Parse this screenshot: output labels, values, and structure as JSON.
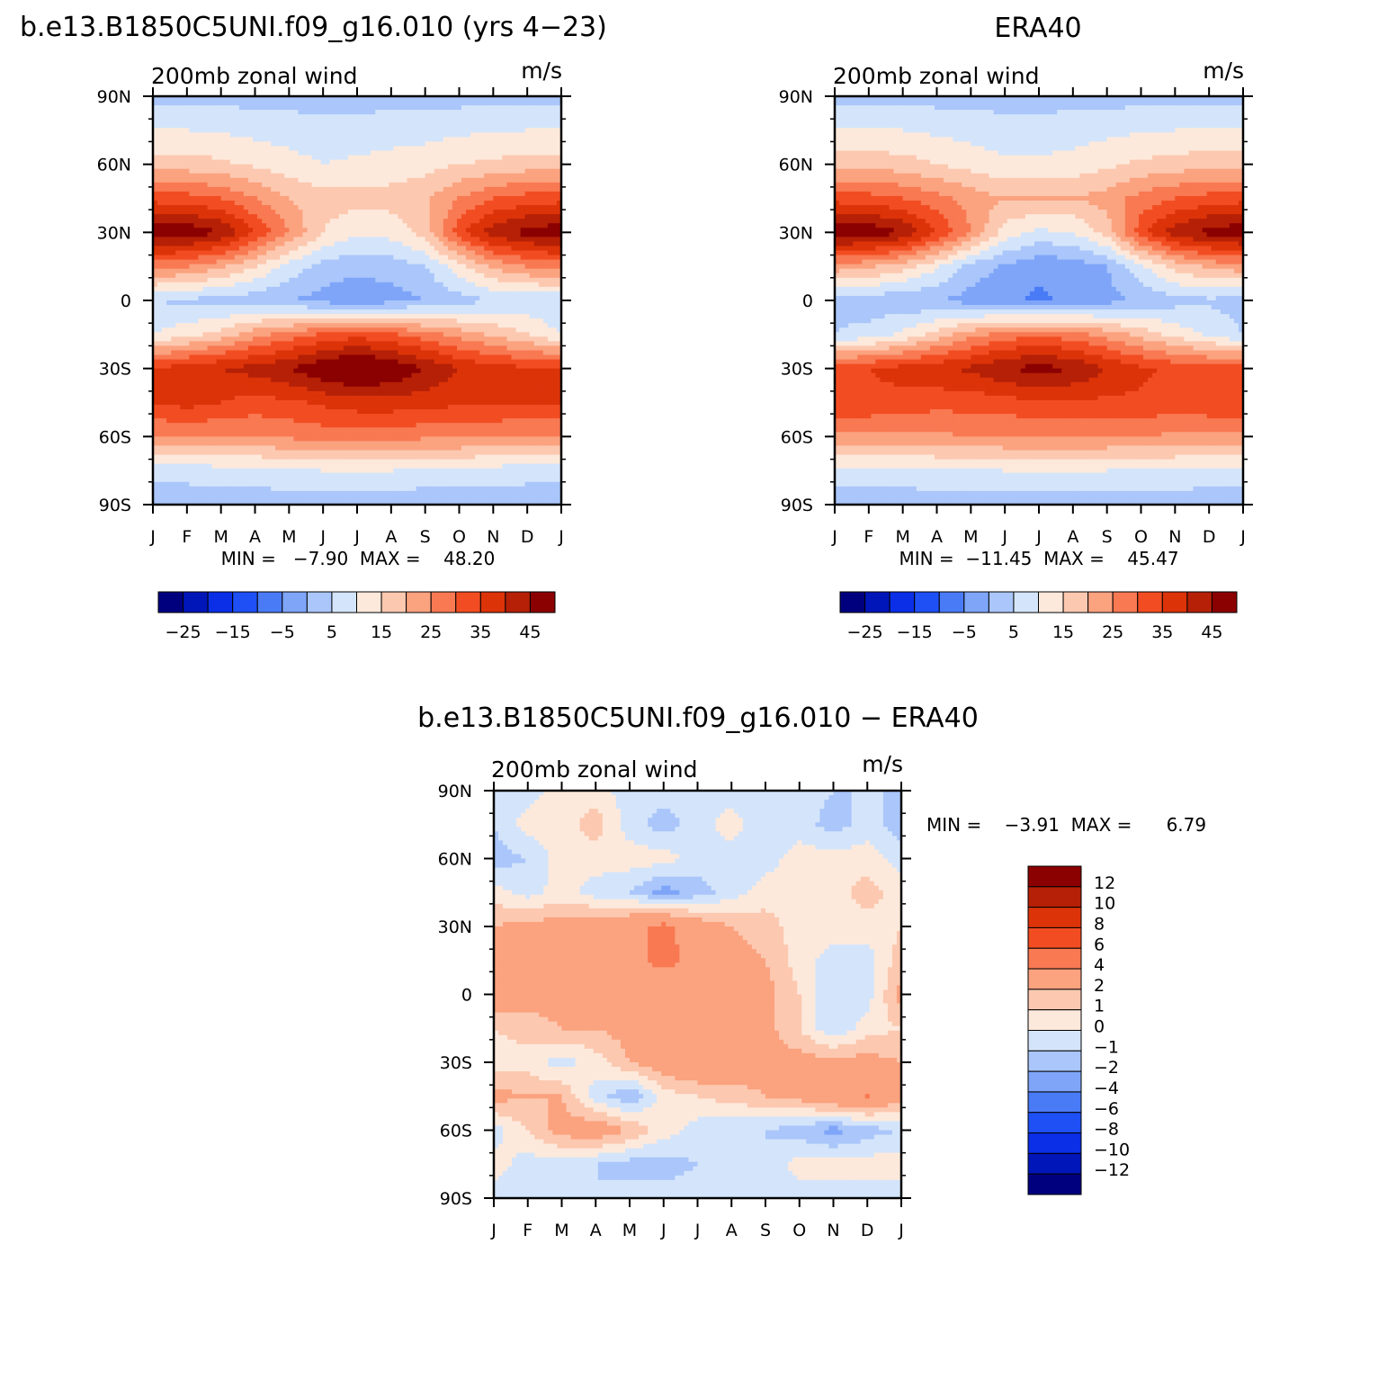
{
  "figure": {
    "panels": [
      {
        "id": "model",
        "title": "b.e13.B1850C5UNI.f09_g16.010 (yrs 4−23)",
        "subtitle_left": "200mb zonal wind",
        "subtitle_right": "m/s",
        "stats_text": "MIN =   −7.90  MAX =    48.20"
      },
      {
        "id": "obs",
        "title": "ERA40",
        "subtitle_left": "200mb zonal wind",
        "subtitle_right": "m/s",
        "stats_text": "MIN =  −11.45  MAX =    45.47"
      },
      {
        "id": "diff",
        "title": "b.e13.B1850C5UNI.f09_g16.010 − ERA40",
        "subtitle_left": "200mb zonal wind",
        "subtitle_right": "m/s",
        "stats_text": "MIN =    −3.91  MAX =      6.79"
      }
    ],
    "colorbar_main": {
      "labels": [
        "−25",
        "−15",
        "−5",
        "5",
        "15",
        "25",
        "35",
        "45"
      ],
      "colors": [
        "#00007f",
        "#0016b8",
        "#0a2fe6",
        "#1e50f5",
        "#4a7bf7",
        "#7ea5f8",
        "#aac6fa",
        "#d4e5fb",
        "#fde9db",
        "#fcc8b0",
        "#fba27f",
        "#f87952",
        "#f24d22",
        "#dc3309",
        "#b52006",
        "#8b0000"
      ]
    },
    "colorbar_diff": {
      "labels": [
        "12",
        "10",
        "8",
        "6",
        "4",
        "2",
        "1",
        "0",
        "−1",
        "−2",
        "−4",
        "−6",
        "−8",
        "−10",
        "−12"
      ],
      "colors": [
        "#8b0000",
        "#b52006",
        "#dc3309",
        "#f24d22",
        "#f87952",
        "#fba27f",
        "#fcc8b0",
        "#fde9db",
        "#d4e5fb",
        "#aac6fa",
        "#7ea5f8",
        "#4a7bf7",
        "#1e50f5",
        "#0a2fe6",
        "#0016b8",
        "#00007f"
      ]
    }
  },
  "chart_data": [
    {
      "type": "heatmap",
      "panel": "model",
      "title": "b.e13.B1850C5UNI.f09_g16.010 (yrs 4−23)",
      "subtitle": "200mb zonal wind",
      "units": "m/s",
      "x_ticks": [
        "J",
        "F",
        "M",
        "A",
        "M",
        "J",
        "J",
        "A",
        "S",
        "O",
        "N",
        "D",
        "J"
      ],
      "y_ticks": [
        "90N",
        "60N",
        "30N",
        "0",
        "30S",
        "60S",
        "90S"
      ],
      "min": -7.9,
      "max": 48.2,
      "levels": [
        -30,
        -25,
        -20,
        -15,
        -10,
        -5,
        0,
        5,
        10,
        15,
        20,
        25,
        30,
        35,
        40,
        45
      ],
      "field": {
        "lat": [
          90,
          60,
          45,
          30,
          15,
          0,
          -15,
          -30,
          -45,
          -60,
          -75,
          -90
        ],
        "month": [
          "Jan",
          "Feb",
          "Mar",
          "Apr",
          "May",
          "Jun",
          "Jul",
          "Aug",
          "Sep",
          "Oct",
          "Nov",
          "Dec",
          "Jan"
        ],
        "u": [
          [
            -2,
            -2,
            -2,
            -2,
            -2,
            -2,
            -2,
            -2,
            -2,
            -2,
            -2,
            -2,
            -2
          ],
          [
            12,
            12,
            11,
            9,
            7,
            5,
            6,
            7,
            8,
            10,
            11,
            12,
            12
          ],
          [
            28,
            27,
            25,
            20,
            15,
            12,
            12,
            12,
            14,
            20,
            25,
            27,
            28
          ],
          [
            44,
            44,
            40,
            30,
            20,
            10,
            6,
            7,
            12,
            28,
            38,
            42,
            44
          ],
          [
            22,
            20,
            16,
            10,
            3,
            -2,
            -4,
            -3,
            0,
            8,
            16,
            20,
            22
          ],
          [
            0,
            -1,
            -2,
            -3,
            -5,
            -7,
            -8,
            -7,
            -5,
            -2,
            0,
            1,
            0
          ],
          [
            5,
            8,
            12,
            18,
            22,
            26,
            28,
            26,
            22,
            18,
            14,
            10,
            5
          ],
          [
            30,
            33,
            35,
            37,
            40,
            45,
            48,
            45,
            40,
            35,
            32,
            31,
            30
          ],
          [
            30,
            32,
            30,
            28,
            29,
            31,
            33,
            33,
            32,
            31,
            31,
            30,
            30
          ],
          [
            20,
            20,
            20,
            20,
            21,
            22,
            22,
            22,
            21,
            21,
            20,
            20,
            20
          ],
          [
            2,
            2,
            3,
            3,
            4,
            5,
            5,
            5,
            4,
            3,
            3,
            2,
            2
          ],
          [
            -3,
            -3,
            -3,
            -3,
            -3,
            -3,
            -3,
            -3,
            -4,
            -3,
            -3,
            -3,
            -3
          ]
        ]
      }
    },
    {
      "type": "heatmap",
      "panel": "obs",
      "title": "ERA40",
      "subtitle": "200mb zonal wind",
      "units": "m/s",
      "x_ticks": [
        "J",
        "F",
        "M",
        "A",
        "M",
        "J",
        "J",
        "A",
        "S",
        "O",
        "N",
        "D",
        "J"
      ],
      "y_ticks": [
        "90N",
        "60N",
        "30N",
        "0",
        "30S",
        "60S",
        "90S"
      ],
      "min": -11.45,
      "max": 45.47,
      "levels": [
        -30,
        -25,
        -20,
        -15,
        -10,
        -5,
        0,
        5,
        10,
        15,
        20,
        25,
        30,
        35,
        40,
        45
      ],
      "field": {
        "lat": [
          90,
          60,
          45,
          30,
          15,
          0,
          -15,
          -30,
          -45,
          -60,
          -75,
          -90
        ],
        "month": [
          "Jan",
          "Feb",
          "Mar",
          "Apr",
          "May",
          "Jun",
          "Jul",
          "Aug",
          "Sep",
          "Oct",
          "Nov",
          "Dec",
          "Jan"
        ],
        "u": [
          [
            -2,
            -2,
            -2,
            -2,
            -2,
            -2,
            -2,
            -2,
            -2,
            -2,
            -2,
            -2,
            -2
          ],
          [
            13,
            13,
            12,
            10,
            8,
            6,
            6,
            7,
            9,
            11,
            12,
            13,
            13
          ],
          [
            28,
            27,
            25,
            22,
            18,
            15,
            15,
            15,
            17,
            22,
            25,
            27,
            28
          ],
          [
            44,
            44,
            40,
            30,
            20,
            8,
            4,
            5,
            12,
            28,
            38,
            42,
            44
          ],
          [
            18,
            16,
            12,
            6,
            -2,
            -6,
            -9,
            -8,
            -5,
            4,
            12,
            16,
            18
          ],
          [
            -2,
            -3,
            -4,
            -5,
            -7,
            -9,
            -11,
            -9,
            -7,
            -4,
            -2,
            -1,
            -2
          ],
          [
            0,
            2,
            6,
            12,
            18,
            22,
            24,
            22,
            18,
            13,
            8,
            4,
            0
          ],
          [
            28,
            30,
            32,
            34,
            36,
            40,
            42,
            40,
            35,
            31,
            29,
            28,
            28
          ],
          [
            30,
            29,
            28,
            27,
            27,
            28,
            29,
            29,
            29,
            29,
            28,
            29,
            30
          ],
          [
            19,
            19,
            19,
            19,
            20,
            20,
            20,
            20,
            20,
            20,
            19,
            19,
            19
          ],
          [
            3,
            3,
            3,
            4,
            4,
            5,
            5,
            5,
            5,
            4,
            4,
            3,
            3
          ],
          [
            -3,
            -3,
            -3,
            -3,
            -3,
            -3,
            -3,
            -3,
            -3,
            -3,
            -3,
            -3,
            -3
          ]
        ]
      }
    },
    {
      "type": "heatmap",
      "panel": "diff",
      "title": "b.e13.B1850C5UNI.f09_g16.010 − ERA40",
      "subtitle": "200mb zonal wind",
      "units": "m/s",
      "x_ticks": [
        "J",
        "F",
        "M",
        "A",
        "M",
        "J",
        "J",
        "A",
        "S",
        "O",
        "N",
        "D",
        "J"
      ],
      "y_ticks": [
        "90N",
        "60N",
        "30N",
        "0",
        "30S",
        "60S",
        "90S"
      ],
      "min": -3.91,
      "max": 6.79,
      "levels": [
        -12,
        -10,
        -8,
        -6,
        -4,
        -2,
        -1,
        0,
        1,
        2,
        4,
        6,
        8,
        10,
        12
      ],
      "field": {
        "lat": [
          90,
          75,
          60,
          45,
          30,
          15,
          0,
          -15,
          -30,
          -45,
          -60,
          -75,
          -90
        ],
        "month": [
          "Jan",
          "Feb",
          "Mar",
          "Apr",
          "May",
          "Jun",
          "Jul",
          "Aug",
          "Sep",
          "Oct",
          "Nov",
          "Dec",
          "Jan"
        ],
        "u": [
          [
            -0.5,
            -0.5,
            0.5,
            0.5,
            -0.5,
            -0.5,
            -0.5,
            -0.5,
            -1,
            -0.5,
            -1,
            -1,
            -1
          ],
          [
            -1,
            0.5,
            0.5,
            1.5,
            -0.5,
            -1.5,
            -0.5,
            0.5,
            -1,
            -0.5,
            -1.5,
            -0.5,
            -1.5
          ],
          [
            -1.5,
            -1,
            0.5,
            0.5,
            0.5,
            0.5,
            -0.5,
            -0.5,
            -0.5,
            0.5,
            0.5,
            0.5,
            -0.5
          ],
          [
            0.5,
            -0.5,
            0.5,
            -0.5,
            -1,
            -2.5,
            -1.5,
            -0.5,
            0.5,
            0.5,
            0.5,
            1.5,
            0.5
          ],
          [
            2,
            2.5,
            2.5,
            3,
            3.5,
            4.5,
            3,
            2,
            1.5,
            0.5,
            0.5,
            0.5,
            1
          ],
          [
            2,
            2,
            3,
            3.5,
            3.5,
            4.5,
            3.5,
            2.5,
            2,
            0.5,
            -0.5,
            -0.5,
            1.5
          ],
          [
            3,
            2.5,
            2.5,
            2,
            2.5,
            2.5,
            3,
            3,
            2.5,
            1,
            -1,
            -0.5,
            2.5
          ],
          [
            1,
            1.5,
            2,
            2,
            2.5,
            3,
            3.5,
            3.5,
            2.5,
            1,
            -1,
            0.5,
            1
          ],
          [
            0.5,
            0.5,
            -0.5,
            0.5,
            2,
            3,
            3.5,
            3,
            2.5,
            2.5,
            2.5,
            2.5,
            2
          ],
          [
            2.5,
            2,
            2,
            -0.5,
            -2,
            0.5,
            1,
            1.5,
            2,
            2.5,
            3.5,
            4,
            2.5
          ],
          [
            -0.5,
            1,
            2.5,
            3,
            2,
            0.5,
            -0.5,
            -1,
            -1,
            -1.5,
            -2.5,
            -1.5,
            -1
          ],
          [
            0.5,
            -0.5,
            -0.5,
            -1,
            -1.5,
            -1.5,
            -1,
            -0.5,
            -1,
            0.5,
            0.5,
            0.5,
            0.5
          ],
          [
            -0.5,
            -0.5,
            -0.5,
            -1,
            -0.5,
            -0.5,
            -0.5,
            -0.5,
            -0.5,
            -0.5,
            -0.5,
            -0.5,
            -0.5
          ]
        ]
      }
    }
  ]
}
